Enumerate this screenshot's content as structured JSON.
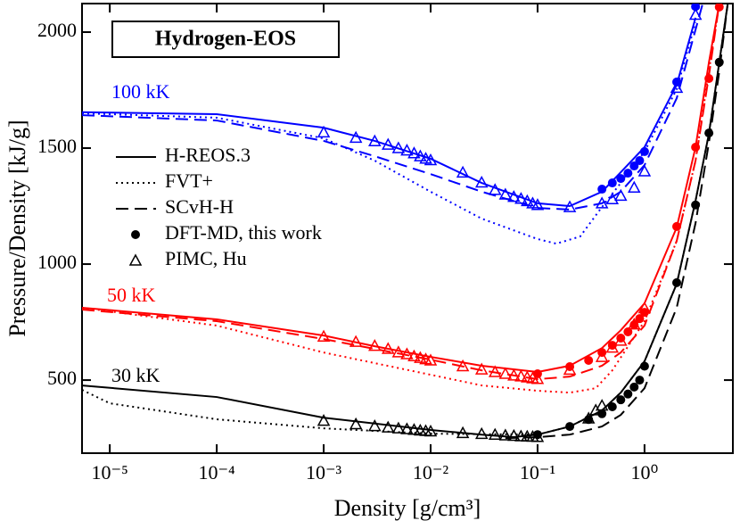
{
  "chart_data": {
    "type": "line",
    "title": "Hydrogen-EOS",
    "x_label": "Density [g/cm³]",
    "y_label": "Pressure/Density [kJ/g]",
    "xscale": "log",
    "xlim": [
      5.5e-06,
      6.7
    ],
    "ylim": [
      185,
      2123
    ],
    "xticks": [
      {
        "value": 1e-05,
        "label": "10⁻⁵"
      },
      {
        "value": 0.0001,
        "label": "10⁻⁴"
      },
      {
        "value": 0.001,
        "label": "10⁻³"
      },
      {
        "value": 0.01,
        "label": "10⁻²"
      },
      {
        "value": 0.1,
        "label": "10⁻¹"
      },
      {
        "value": 1,
        "label": "10⁰"
      }
    ],
    "yticks": [
      500,
      1000,
      1500,
      2000
    ],
    "legend": [
      {
        "name": "H-REOS.3",
        "style": "solid"
      },
      {
        "name": "FVT+",
        "style": "dotted"
      },
      {
        "name": "SCvH-H",
        "style": "dashed"
      },
      {
        "name": "DFT-MD, this work",
        "style": "circle"
      },
      {
        "name": "PIMC, Hu",
        "style": "triangle"
      }
    ],
    "groups": [
      {
        "label": "100 kK",
        "color": "#0000ff",
        "series": [
          {
            "style": "solid",
            "x": [
              5.5e-06,
              0.0001,
              0.001,
              0.003,
              0.01,
              0.03,
              0.1,
              0.2,
              0.4,
              0.6,
              1.0,
              2.0,
              3.0
            ],
            "values": [
              1655,
              1646,
              1588,
              1531,
              1454,
              1350,
              1262,
              1250,
              1312,
              1396,
              1504,
              1773,
              2062
            ]
          },
          {
            "style": "dotted",
            "x": [
              5.5e-06,
              0.0001,
              0.001,
              0.003,
              0.01,
              0.03,
              0.1,
              0.15,
              0.25,
              0.4,
              0.6,
              1.0,
              2.0,
              3.0
            ],
            "values": [
              1650,
              1631,
              1542,
              1446,
              1312,
              1196,
              1108,
              1088,
              1119,
              1246,
              1350,
              1485,
              1754,
              2042
            ]
          },
          {
            "style": "dashed",
            "x": [
              5.5e-06,
              0.0001,
              0.001,
              0.003,
              0.01,
              0.03,
              0.1,
              0.2,
              0.4,
              0.6,
              1.0,
              2.0,
              3.5
            ],
            "values": [
              1642,
              1619,
              1531,
              1465,
              1388,
              1312,
              1242,
              1235,
              1262,
              1312,
              1427,
              1715,
              2123
            ]
          },
          {
            "style": "circle",
            "x": [
              0.4,
              0.5,
              0.6,
              0.7,
              0.8,
              0.9,
              1.0,
              2.0,
              3.0
            ],
            "values": [
              1323,
              1350,
              1369,
              1392,
              1423,
              1446,
              1485,
              1785,
              2110
            ]
          },
          {
            "style": "triangle",
            "x": [
              0.001,
              0.002,
              0.003,
              0.004,
              0.005,
              0.006,
              0.007,
              0.008,
              0.009,
              0.01,
              0.02,
              0.03,
              0.04,
              0.05,
              0.06,
              0.07,
              0.08,
              0.09,
              0.1,
              0.2,
              0.4,
              0.5,
              0.6,
              0.8,
              1.0,
              2.0,
              3.0
            ],
            "values": [
              1568,
              1545,
              1530,
              1515,
              1500,
              1490,
              1478,
              1465,
              1455,
              1448,
              1395,
              1352,
              1320,
              1300,
              1290,
              1282,
              1272,
              1262,
              1255,
              1246,
              1262,
              1280,
              1295,
              1330,
              1400,
              1760,
              2075
            ]
          }
        ]
      },
      {
        "label": "50 kK",
        "color": "#ff0000",
        "series": [
          {
            "style": "solid",
            "x": [
              5.5e-06,
              0.0001,
              0.001,
              0.003,
              0.01,
              0.03,
              0.1,
              0.2,
              0.4,
              0.6,
              1.0,
              2.0,
              3.0,
              4.0,
              5.0
            ],
            "values": [
              812,
              762,
              692,
              646,
              600,
              562,
              535,
              562,
              638,
              715,
              831,
              1158,
              1504,
              1869,
              2123
            ]
          },
          {
            "style": "dotted",
            "x": [
              5.5e-06,
              0.0001,
              0.001,
              0.01,
              0.03,
              0.1,
              0.2,
              0.35,
              0.5,
              1.0,
              2.0,
              3.0,
              4.0,
              5.0
            ],
            "values": [
              812,
              735,
              619,
              523,
              477,
              454,
              446,
              465,
              542,
              754,
              1100,
              1446,
              1831,
              2123
            ]
          },
          {
            "style": "dashed",
            "x": [
              5.5e-06,
              0.0001,
              0.001,
              0.01,
              0.03,
              0.1,
              0.2,
              0.4,
              0.6,
              1.0,
              2.0,
              3.0,
              4.0,
              5.0
            ],
            "values": [
              804,
              754,
              677,
              588,
              542,
              504,
              515,
              562,
              619,
              735,
              1100,
              1446,
              1812,
              2123
            ]
          },
          {
            "style": "circle",
            "x": [
              0.1,
              0.2,
              0.3,
              0.4,
              0.5,
              0.6,
              0.7,
              0.8,
              0.9,
              1.0,
              2.0,
              3.0,
              4.0,
              5.0
            ],
            "values": [
              527,
              558,
              585,
              619,
              650,
              681,
              708,
              738,
              765,
              792,
              1162,
              1504,
              1800,
              2108
            ]
          },
          {
            "style": "triangle",
            "x": [
              0.001,
              0.002,
              0.003,
              0.004,
              0.005,
              0.006,
              0.007,
              0.008,
              0.009,
              0.01,
              0.02,
              0.03,
              0.04,
              0.05,
              0.06,
              0.07,
              0.08,
              0.09,
              0.1,
              0.2,
              0.4,
              0.5,
              0.6,
              0.8,
              1.0
            ],
            "values": [
              688,
              665,
              648,
              635,
              620,
              612,
              603,
              596,
              590,
              585,
              560,
              546,
              535,
              527,
              520,
              516,
              512,
              508,
              505,
              545,
              600,
              640,
              670,
              740,
              810
            ]
          }
        ]
      },
      {
        "label": "30 kK",
        "color": "#000000",
        "series": [
          {
            "style": "solid",
            "x": [
              5.5e-06,
              0.0001,
              0.001,
              0.01,
              0.03,
              0.06,
              0.1,
              0.2,
              0.4,
              0.6,
              1.0,
              2.0,
              3.0,
              4.0,
              5.0,
              6.0
            ],
            "values": [
              477,
              427,
              338,
              285,
              265,
              254,
              265,
              300,
              369,
              446,
              581,
              915,
              1273,
              1562,
              1869,
              2123
            ]
          },
          {
            "style": "dotted",
            "x": [
              5.5e-06,
              1e-05,
              0.0001,
              0.001,
              0.01,
              0.1,
              0.2,
              0.4,
              0.6,
              1.0,
              2.0,
              3.0,
              4.0,
              5.0,
              6.0
            ],
            "values": [
              458,
              400,
              331,
              292,
              269,
              265,
              300,
              369,
              446,
              581,
              915,
              1273,
              1562,
              1869,
              2123
            ]
          },
          {
            "style": "dashed",
            "x": [
              0.05,
              0.1,
              0.2,
              0.4,
              0.6,
              1.0,
              2.0,
              3.0,
              4.0,
              5.0,
              6.0
            ],
            "values": [
              250,
              254,
              265,
              300,
              350,
              465,
              812,
              1177,
              1523,
              1830,
              2123
            ]
          },
          {
            "style": "circle",
            "x": [
              0.1,
              0.2,
              0.3,
              0.4,
              0.5,
              0.6,
              0.7,
              0.8,
              0.9,
              1.0,
              2.0,
              3.0,
              4.0,
              5.0
            ],
            "values": [
              265,
              300,
              330,
              355,
              385,
              415,
              440,
              470,
              500,
              560,
              920,
              1255,
              1565,
              1870
            ]
          },
          {
            "style": "triangle",
            "x": [
              0.001,
              0.002,
              0.003,
              0.004,
              0.005,
              0.006,
              0.007,
              0.008,
              0.009,
              0.01,
              0.02,
              0.03,
              0.04,
              0.05,
              0.06,
              0.07,
              0.08,
              0.09,
              0.1,
              0.3,
              0.35,
              0.4
            ],
            "values": [
              325,
              310,
              302,
              296,
              292,
              289,
              286,
              283,
              281,
              279,
              272,
              268,
              265,
              262,
              260,
              258,
              257,
              256,
              255,
              335,
              370,
              390
            ]
          }
        ]
      }
    ]
  }
}
